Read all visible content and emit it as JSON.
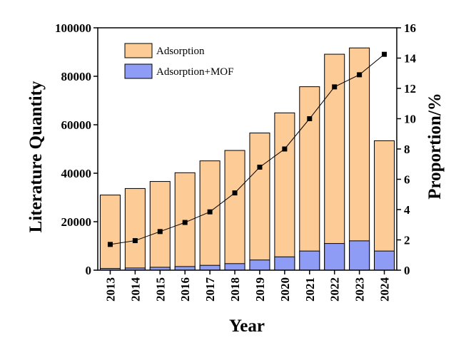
{
  "chart_data": {
    "type": "bar",
    "categories": [
      "2013",
      "2014",
      "2015",
      "2016",
      "2017",
      "2018",
      "2019",
      "2020",
      "2021",
      "2022",
      "2023",
      "2024"
    ],
    "series": [
      {
        "name": "Adsorption",
        "type": "bar",
        "axis": "left",
        "color": "#FDCB96",
        "values": [
          31000,
          33700,
          36600,
          40200,
          45100,
          49400,
          56600,
          64900,
          75700,
          89100,
          91700,
          53400
        ]
      },
      {
        "name": "Adsorption+MOF",
        "type": "bar",
        "axis": "left",
        "color": "#8F9CF5",
        "values": [
          700,
          900,
          1200,
          1500,
          2000,
          2700,
          4200,
          5500,
          7900,
          11000,
          12100,
          7900
        ]
      },
      {
        "name": "",
        "type": "line",
        "axis": "right",
        "color": "#000000",
        "values": [
          1.7,
          1.95,
          2.55,
          3.15,
          3.85,
          5.1,
          6.8,
          8.0,
          10.0,
          12.1,
          12.9,
          14.25
        ]
      }
    ],
    "xlabel": "Year",
    "ylabel": "Literature Quantity",
    "y2label": "Proportion/%",
    "ylim": [
      0,
      100000
    ],
    "y2lim": [
      0,
      16
    ],
    "yticks": [
      "0",
      "20000",
      "40000",
      "60000",
      "80000",
      "100000"
    ],
    "y2ticks": [
      "0",
      "2",
      "4",
      "6",
      "8",
      "10",
      "12",
      "14",
      "16"
    ],
    "legend": "top-left",
    "grid": false
  }
}
